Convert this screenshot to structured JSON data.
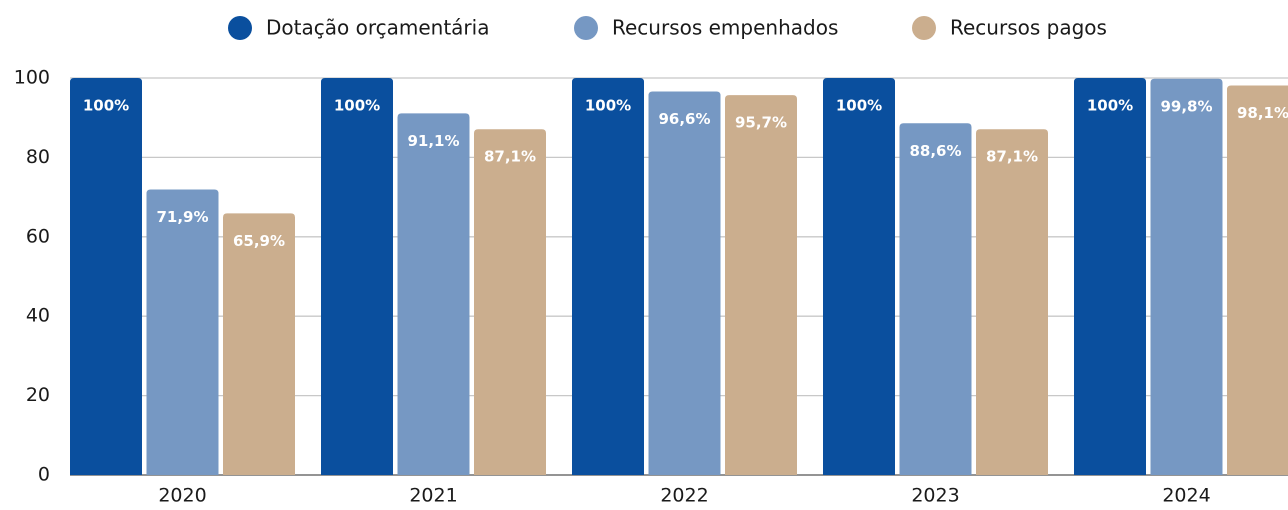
{
  "chart_data": {
    "type": "bar",
    "categories": [
      "2020",
      "2021",
      "2022",
      "2023",
      "2024"
    ],
    "series": [
      {
        "name": "Dotação orçamentária",
        "color": "#0a4f9e",
        "values": [
          100,
          100,
          100,
          100,
          100
        ],
        "value_labels": [
          "100%",
          "100%",
          "100%",
          "100%",
          "100%"
        ]
      },
      {
        "name": "Recursos empenhados",
        "color": "#7698c3",
        "values": [
          71.9,
          91.1,
          96.6,
          88.6,
          99.8
        ],
        "value_labels": [
          "71,9%",
          "91,1%",
          "96,6%",
          "88,6%",
          "99,8%"
        ]
      },
      {
        "name": "Recursos pagos",
        "color": "#cbae8e",
        "values": [
          65.9,
          87.1,
          95.7,
          87.1,
          98.1
        ],
        "value_labels": [
          "65,9%",
          "87,1%",
          "95,7%",
          "87,1%",
          "98,1%"
        ]
      }
    ],
    "ylim": [
      0,
      100
    ],
    "yticks": [
      0,
      20,
      40,
      60,
      80,
      100
    ],
    "grid": true,
    "legend": "top"
  }
}
